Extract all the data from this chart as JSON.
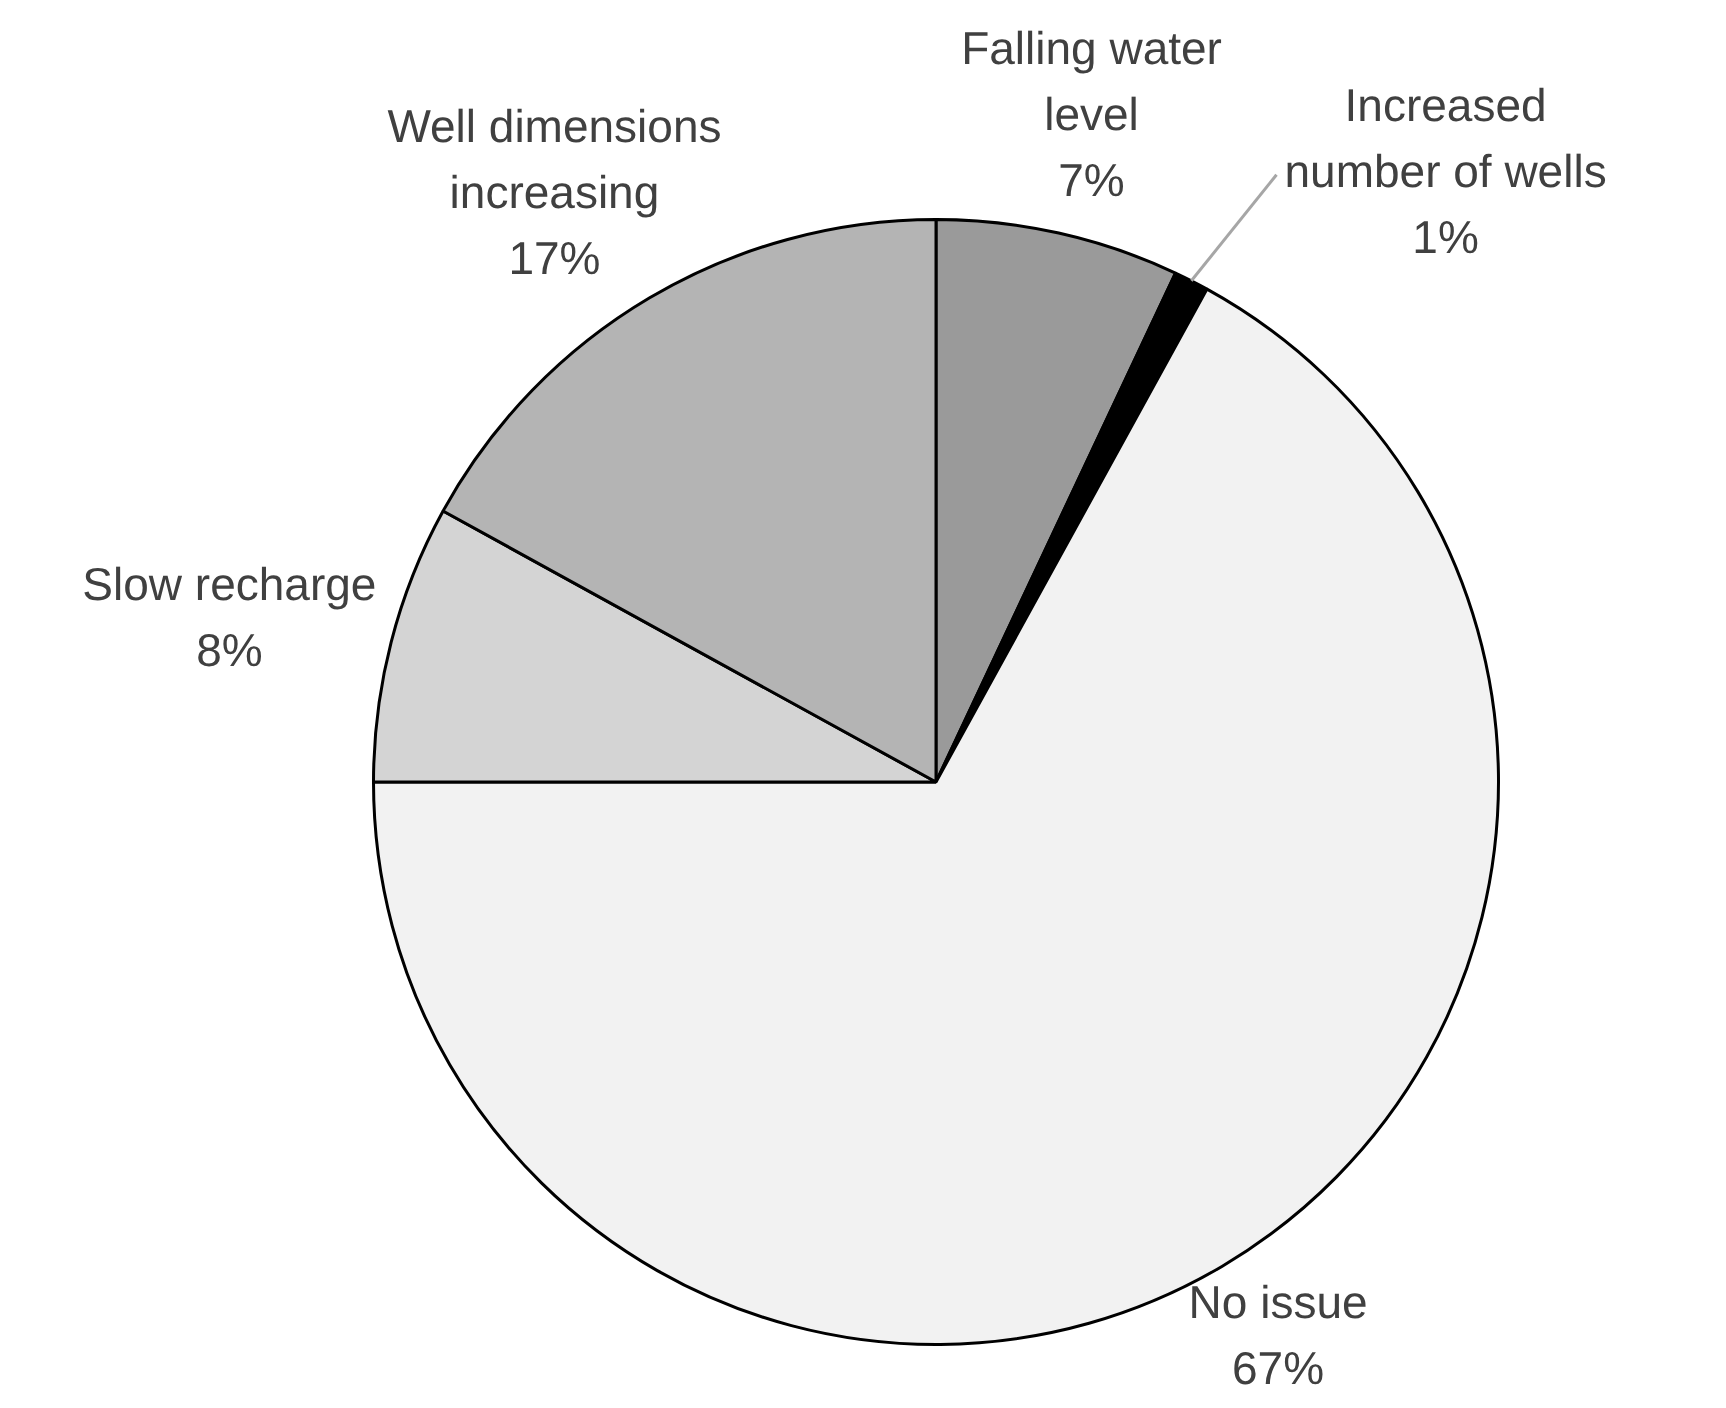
{
  "chart_data": {
    "type": "pie",
    "categories": [
      "Falling water level",
      "Increased number of wells",
      "No issue",
      "Slow recharge",
      "Well dimensions increasing"
    ],
    "values": [
      7,
      1,
      67,
      8,
      17
    ],
    "value_labels": [
      "7%",
      "1%",
      "67%",
      "8%",
      "17%"
    ],
    "colors": [
      "#9a9a9a",
      "#000000",
      "#f2f2f2",
      "#d4d4d4",
      "#b4b4b4"
    ],
    "legend": false
  }
}
